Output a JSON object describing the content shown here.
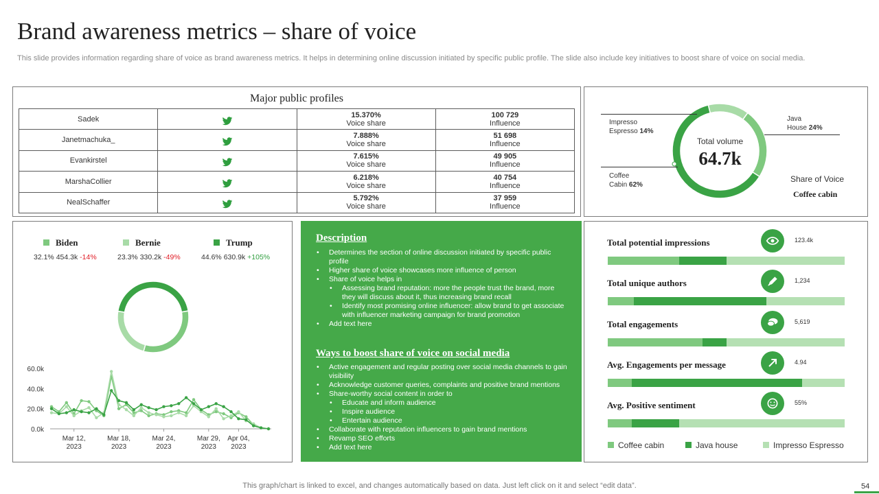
{
  "title": "Brand awareness metrics – share of voice",
  "subtitle": "This slide provides information regarding share of voice as brand awareness metrics. It helps in determining online discussion initiated by specific public profile. The slide also include key initiatives to boost share of voice on social media.",
  "profiles": {
    "title": "Major public  profiles",
    "rows": [
      {
        "name": "Sadek",
        "share": "15.370%",
        "share_label": "Voice share",
        "influence": "100 729",
        "influence_label": "Influence"
      },
      {
        "name": "Janetmachuka_",
        "share": "7.888%",
        "share_label": "Voice share",
        "influence": "51 698",
        "influence_label": "Influence"
      },
      {
        "name": "Evankirstel",
        "share": "7.615%",
        "share_label": "Voice share",
        "influence": "49 905",
        "influence_label": "Influence"
      },
      {
        "name": "MarshaCollier",
        "share": "6.218%",
        "share_label": "Voice share",
        "influence": "40 754",
        "influence_label": "Influence"
      },
      {
        "name": "NealSchaffer",
        "share": "5.792%",
        "share_label": "Voice share",
        "influence": "37 959",
        "influence_label": "Influence"
      }
    ]
  },
  "volume": {
    "center_label": "Total volume",
    "center_value": "64.7k",
    "segments": [
      {
        "name": "Impresso",
        "name2": "Espresso",
        "pct": "14%",
        "value": 14,
        "color": "#a8dba7"
      },
      {
        "name": "Java",
        "name2": "House",
        "pct": "24%",
        "value": 24,
        "color": "#7fc97f"
      },
      {
        "name": "Coffee",
        "name2": "Cabin",
        "pct": "62%",
        "value": 62,
        "color": "#3aa345"
      }
    ],
    "share_title": "Share of Voice",
    "share_value": "Coffee cabin"
  },
  "candidates": [
    {
      "name": "Biden",
      "color": "#7fc97f",
      "pct": "32.1%",
      "count": "454.3k",
      "change": "-14%",
      "dir": "neg"
    },
    {
      "name": "Bernie",
      "color": "#a8dba7",
      "pct": "23.3%",
      "count": "330.2k",
      "change": "-49%",
      "dir": "neg"
    },
    {
      "name": "Trump",
      "color": "#3aa345",
      "pct": "44.6%",
      "count": "630.9k",
      "change": "+105%",
      "dir": "pos"
    }
  ],
  "chart_data": [
    {
      "type": "pie",
      "title": "",
      "labels": [
        "Biden",
        "Bernie",
        "Trump"
      ],
      "values": [
        32.1,
        23.3,
        44.6
      ],
      "colors": [
        "#7fc97f",
        "#a8dba7",
        "#3aa345"
      ]
    },
    {
      "type": "line",
      "ylim": [
        0,
        60
      ],
      "yticks": [
        0,
        20,
        40,
        60
      ],
      "ytick_labels": [
        "0.0k",
        "20.0k",
        "40.0k",
        "60.0k"
      ],
      "xlim": [
        0,
        29
      ],
      "xticks": [
        3,
        9,
        15,
        21,
        25
      ],
      "xtick_labels": [
        [
          "Mar 12,",
          "2023"
        ],
        [
          "Mar 18,",
          "2023"
        ],
        [
          "Mar 24,",
          "2023"
        ],
        [
          "Mar 29,",
          "2023"
        ],
        [
          "Apr 04,",
          "2023"
        ]
      ],
      "series": [
        {
          "name": "Biden",
          "color": "#7fc97f",
          "values": [
            22,
            17,
            26,
            15,
            28,
            27,
            18,
            13,
            52,
            20,
            24,
            16,
            18,
            13,
            15,
            14,
            17,
            18,
            16,
            29,
            19,
            14,
            17,
            15,
            11,
            16,
            12,
            4,
            1,
            0
          ]
        },
        {
          "name": "Bernie",
          "color": "#a8dba7",
          "values": [
            16,
            15,
            22,
            13,
            18,
            21,
            11,
            16,
            57,
            24,
            19,
            13,
            21,
            16,
            14,
            12,
            13,
            16,
            13,
            23,
            17,
            12,
            20,
            10,
            13,
            17,
            8,
            5,
            1,
            0
          ]
        },
        {
          "name": "Trump",
          "color": "#3aa345",
          "values": [
            20,
            15,
            16,
            19,
            17,
            16,
            20,
            14,
            38,
            28,
            26,
            19,
            24,
            21,
            19,
            22,
            23,
            25,
            31,
            25,
            19,
            22,
            25,
            22,
            17,
            10,
            9,
            3,
            1,
            0
          ]
        }
      ]
    },
    {
      "type": "bar",
      "orientation": "horizontal-stacked",
      "categories": [
        "Total  potential  impressions",
        "Total  unique  authors",
        "Total  engagements",
        "Avg.  Engagements  per message",
        "Avg.  Positive  sentiment"
      ],
      "series": [
        {
          "name": "Coffee cabin",
          "color": "#7fc97f",
          "values": [
            30,
            11,
            40,
            10,
            10
          ]
        },
        {
          "name": "Java house",
          "color": "#3aa345",
          "values": [
            20,
            56,
            10,
            72,
            20
          ]
        },
        {
          "name": "Impresso Espresso",
          "color": "#b5e0b3",
          "values": [
            50,
            33,
            50,
            18,
            70
          ]
        }
      ]
    }
  ],
  "description": {
    "heading": "Description",
    "items": [
      {
        "text": "Determines the section of online discussion initiated by specific public profile",
        "level": 1
      },
      {
        "text": "Higher share of voice showcases more influence of person",
        "level": 1
      },
      {
        "text": "Share of voice helps in",
        "level": 1
      },
      {
        "text": "Assessing brand reputation: more the people trust the brand, more they will discuss about it, thus increasing brand recall",
        "level": 2
      },
      {
        "text": "Identify most promising online influencer: allow brand to get associate with influencer marketing campaign for brand promotion",
        "level": 2
      },
      {
        "text": "Add text here",
        "level": 1
      }
    ],
    "ways_heading": "Ways to boost share of voice on social media",
    "ways": [
      {
        "text": "Active engagement and regular posting over social media channels to gain visibility",
        "level": 1
      },
      {
        "text": "Acknowledge customer queries, complaints and positive brand mentions",
        "level": 1
      },
      {
        "text": "Share-worthy social content in order to",
        "level": 1
      },
      {
        "text": "Educate and inform audience",
        "level": 2
      },
      {
        "text": "Inspire audience",
        "level": 2
      },
      {
        "text": "Entertain audience",
        "level": 2
      },
      {
        "text": "Collaborate with reputation influencers to gain brand mentions",
        "level": 1
      },
      {
        "text": "Revamp SEO efforts",
        "level": 1
      },
      {
        "text": "Add text here",
        "level": 1
      }
    ]
  },
  "metrics": [
    {
      "label": "Total  potential  impressions",
      "value": "123.4k",
      "icon": "eye-icon"
    },
    {
      "label": "Total  unique  authors",
      "value": "1,234",
      "icon": "pen-icon"
    },
    {
      "label": "Total  engagements",
      "value": "5,619",
      "icon": "chat-icon"
    },
    {
      "label": "Avg.  Engagements  per message",
      "value": "4.94",
      "icon": "arrow-icon"
    },
    {
      "label": "Avg.  Positive  sentiment",
      "value": "55%",
      "icon": "smiley-icon"
    }
  ],
  "bar_legend": [
    "Coffee cabin",
    "Java house",
    "Impresso Espresso"
  ],
  "footer": "This graph/chart is linked to excel, and changes automatically based on data. Just left click on it and select “edit data”.",
  "page_number": "54"
}
